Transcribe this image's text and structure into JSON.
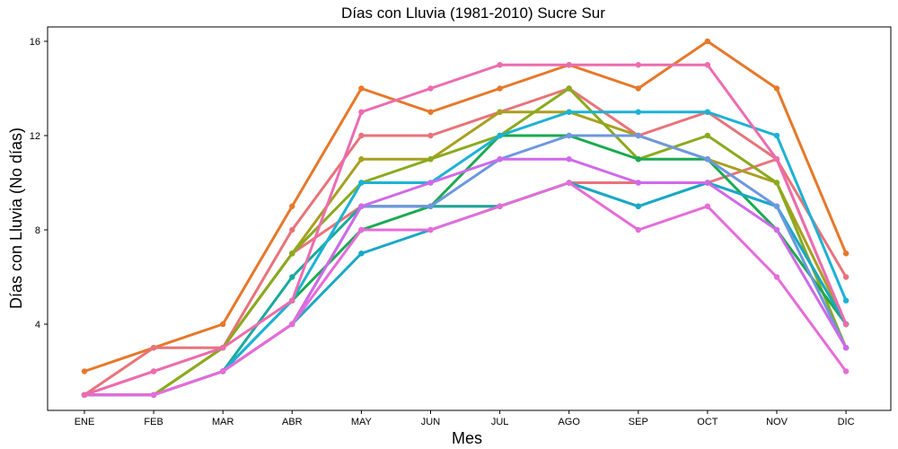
{
  "chart_data": {
    "type": "line",
    "title": "Días con Lluvia (1981-2010)  Sucre Sur",
    "xlabel": "Mes",
    "ylabel": "Días con Lluvia (No días)",
    "categories": [
      "ENE",
      "FEB",
      "MAR",
      "ABR",
      "MAY",
      "JUN",
      "JUL",
      "AGO",
      "SEP",
      "OCT",
      "NOV",
      "DIC"
    ],
    "yticks": [
      4,
      8,
      12,
      16
    ],
    "ylim": [
      0,
      17
    ],
    "grid": false,
    "legend": "none",
    "series": [
      {
        "color": "#E6782A",
        "values": [
          2,
          3,
          4,
          9,
          14,
          13,
          14,
          15,
          14,
          16,
          14,
          7
        ]
      },
      {
        "color": "#E8737A",
        "values": [
          1,
          2,
          3,
          8,
          12,
          12,
          13,
          14,
          12,
          13,
          11,
          6
        ]
      },
      {
        "color": "#E8737A",
        "values": [
          1,
          3,
          3,
          7,
          9,
          9,
          9,
          10,
          10,
          10,
          11,
          4
        ]
      },
      {
        "color": "#A8A020",
        "values": [
          1,
          1,
          3,
          7,
          11,
          11,
          13,
          13,
          12,
          11,
          10,
          4
        ]
      },
      {
        "color": "#8AAA1E",
        "values": [
          1,
          1,
          3,
          7,
          10,
          11,
          12,
          14,
          11,
          12,
          10,
          3
        ]
      },
      {
        "color": "#1AAA50",
        "values": [
          1,
          1,
          2,
          5,
          8,
          9,
          12,
          12,
          11,
          11,
          8,
          4
        ]
      },
      {
        "color": "#19A99C",
        "values": [
          1,
          1,
          2,
          6,
          9,
          9,
          9,
          10,
          9,
          10,
          9,
          4
        ]
      },
      {
        "color": "#1CB2D4",
        "values": [
          1,
          1,
          2,
          5,
          10,
          10,
          12,
          13,
          13,
          13,
          12,
          5
        ]
      },
      {
        "color": "#19A8C6",
        "values": [
          1,
          1,
          2,
          4,
          7,
          8,
          9,
          10,
          9,
          10,
          9,
          4
        ]
      },
      {
        "color": "#6E97E0",
        "values": [
          1,
          1,
          2,
          4,
          9,
          9,
          11,
          12,
          12,
          11,
          9,
          3
        ]
      },
      {
        "color": "#D069E8",
        "values": [
          1,
          1,
          2,
          4,
          9,
          10,
          11,
          11,
          10,
          10,
          8,
          3
        ]
      },
      {
        "color": "#E66CD8",
        "values": [
          1,
          1,
          2,
          4,
          8,
          8,
          9,
          10,
          8,
          9,
          6,
          2
        ]
      },
      {
        "color": "#EC6CB0",
        "values": [
          1,
          2,
          3,
          5,
          13,
          14,
          15,
          15,
          15,
          15,
          11,
          4
        ]
      }
    ]
  }
}
